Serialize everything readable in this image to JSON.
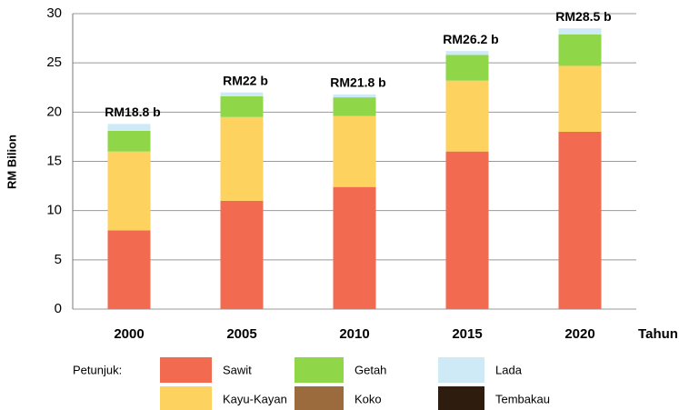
{
  "chart_data": {
    "type": "stacked_bar",
    "y_label": "RM Bilion",
    "x_label": "Tahun",
    "legend_title": "Petunjuk:",
    "categories": [
      "2000",
      "2005",
      "2010",
      "2015",
      "2020"
    ],
    "series": [
      {
        "name": "Sawit",
        "color": "#f26b50",
        "values": [
          8,
          11,
          12.4,
          16,
          18
        ]
      },
      {
        "name": "Kayu-Kayan",
        "color": "#fdd25e",
        "values": [
          8,
          8.5,
          7.2,
          7.2,
          6.7
        ]
      },
      {
        "name": "Getah",
        "color": "#8fd648",
        "values": [
          2.1,
          2.1,
          1.9,
          2.6,
          3.2
        ]
      },
      {
        "name": "Koko",
        "color": "#9b6b3e",
        "values": [
          0,
          0,
          0,
          0,
          0
        ]
      },
      {
        "name": "Tembakau",
        "color": "#2e1c0e",
        "values": [
          0,
          0,
          0,
          0,
          0
        ]
      },
      {
        "name": "Lada",
        "color": "#cfeaf7",
        "values": [
          0.7,
          0.4,
          0.3,
          0.4,
          0.6
        ]
      }
    ],
    "totals": [
      18.8,
      22,
      21.8,
      26.2,
      28.5
    ],
    "total_labels": [
      "RM18.8 b",
      "RM22 b",
      "RM21.8 b",
      "RM26.2 b",
      "RM28.5 b"
    ],
    "ylim": [
      0,
      30
    ],
    "yticks": [
      0,
      5,
      10,
      15,
      20,
      25,
      30
    ],
    "grid": true
  }
}
